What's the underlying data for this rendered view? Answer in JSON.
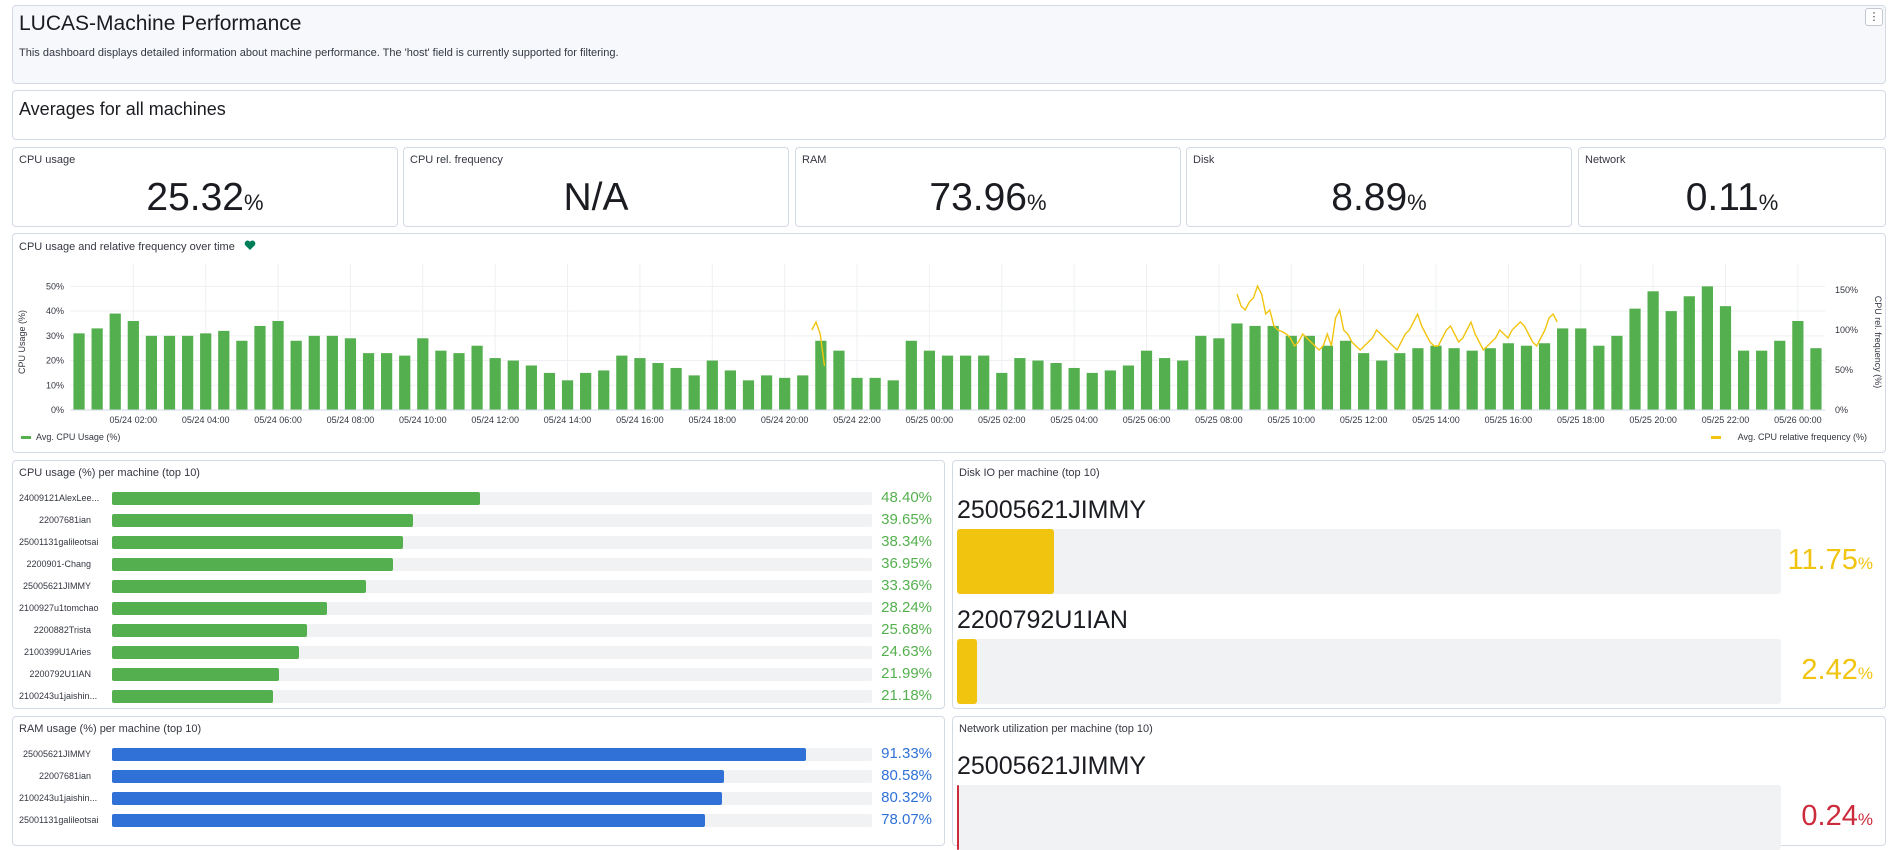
{
  "header": {
    "title": "LUCAS-Machine Performance",
    "description": "This dashboard displays detailed information about machine performance. The 'host' field is currently supported for filtering.",
    "menu_icon": "vertical-dots-icon",
    "menu_label": "⋮"
  },
  "averages": {
    "title": "Averages for all machines"
  },
  "metrics": [
    {
      "label": "CPU usage",
      "value": "25.32",
      "unit": "%"
    },
    {
      "label": "CPU rel. frequency",
      "value": "N/A",
      "unit": ""
    },
    {
      "label": "RAM",
      "value": "73.96",
      "unit": "%"
    },
    {
      "label": "Disk",
      "value": "8.89",
      "unit": "%"
    },
    {
      "label": "Network",
      "value": "0.11",
      "unit": "%"
    }
  ],
  "colors": {
    "green": "#54b04e",
    "yellow": "#f1c40f",
    "blue": "#2f71d6",
    "red": "#cc2b3c",
    "health": "#007e5a"
  },
  "timeline": {
    "title": "CPU usage and relative frequency over time",
    "health_icon": "heart-icon",
    "chart_data": {
      "type": "bar",
      "ylabel": "CPU Usage (%)",
      "y2label": "CPU rel. frequency (%)",
      "ylim": [
        0,
        55
      ],
      "y2lim": [
        0,
        170
      ],
      "yticks": [
        "0%",
        "10%",
        "20%",
        "30%",
        "40%",
        "50%"
      ],
      "y2ticks": [
        "0%",
        "50%",
        "100%",
        "150%"
      ],
      "xticks": [
        "05/24 02:00",
        "05/24 04:00",
        "05/24 06:00",
        "05/24 08:00",
        "05/24 10:00",
        "05/24 12:00",
        "05/24 14:00",
        "05/24 16:00",
        "05/24 18:00",
        "05/24 20:00",
        "05/24 22:00",
        "05/25 00:00",
        "05/25 02:00",
        "05/25 04:00",
        "05/25 06:00",
        "05/25 08:00",
        "05/25 10:00",
        "05/25 12:00",
        "05/25 14:00",
        "05/25 16:00",
        "05/25 18:00",
        "05/25 20:00",
        "05/25 22:00",
        "05/26 00:00"
      ],
      "series": [
        {
          "name": "Avg. CPU Usage (%)",
          "values": [
            31,
            33,
            39,
            36,
            30,
            30,
            30,
            31,
            32,
            28,
            34,
            36,
            28,
            30,
            30,
            29,
            23,
            23,
            22,
            29,
            24,
            23,
            26,
            21,
            20,
            18,
            15,
            12,
            15,
            16,
            22,
            21,
            19,
            17,
            14,
            20,
            16,
            12,
            14,
            13,
            14,
            28,
            24,
            13,
            13,
            12,
            28,
            24,
            22,
            22,
            22,
            15,
            21,
            20,
            19,
            17,
            15,
            16,
            18,
            24,
            21,
            20,
            30,
            29,
            35,
            34,
            34,
            30,
            30,
            26,
            28,
            23,
            20,
            23,
            25,
            26,
            25,
            24,
            25,
            27,
            26,
            27,
            33,
            33,
            26,
            30,
            41,
            48,
            40,
            46,
            50,
            42,
            24,
            24,
            28,
            36,
            25
          ]
        },
        {
          "name": "Avg. CPU relative frequency (%)",
          "values": [
            null,
            null,
            null,
            null,
            null,
            null,
            null,
            null,
            null,
            null,
            null,
            null,
            null,
            null,
            null,
            null,
            null,
            null,
            null,
            null,
            null,
            null,
            null,
            null,
            null,
            null,
            null,
            null,
            null,
            null,
            null,
            null,
            null,
            null,
            null,
            null,
            null,
            null,
            null,
            null,
            null,
            null,
            null,
            null,
            null,
            null,
            null,
            null,
            null,
            null,
            null,
            null,
            null,
            null,
            null,
            null,
            null,
            null,
            null,
            null,
            null,
            null,
            null,
            null,
            null,
            null,
            null,
            null,
            null,
            null,
            null,
            null,
            null,
            null,
            null,
            null,
            null,
            null,
            null,
            null,
            null,
            null,
            null,
            null,
            null,
            null,
            null,
            null,
            null,
            null,
            null,
            null,
            null,
            null,
            null,
            null,
            null
          ]
        }
      ]
    },
    "freq_segments": [
      {
        "start": 41.0,
        "end": 41.7,
        "values": [
          100,
          110,
          95,
          55
        ]
      },
      {
        "start": 64.5,
        "end": 82.2,
        "values": [
          145,
          130,
          125,
          135,
          140,
          155,
          145,
          120,
          125,
          105,
          100,
          98,
          95,
          90,
          80,
          85,
          95,
          90,
          85,
          80,
          75,
          80,
          95,
          80,
          115,
          125,
          100,
          95,
          85,
          80,
          75,
          80,
          85,
          90,
          100,
          95,
          90,
          85,
          80,
          75,
          85,
          95,
          100,
          110,
          120,
          105,
          95,
          85,
          80,
          80,
          90,
          100,
          105,
          95,
          85,
          90,
          100,
          110,
          95,
          85,
          75,
          80,
          85,
          90,
          100,
          95,
          90,
          100,
          105,
          110,
          105,
          95,
          85,
          80,
          90,
          100,
          115,
          120,
          110
        ]
      }
    ]
  },
  "cpu_top": {
    "title": "CPU usage (%) per machine (top 10)",
    "rows": [
      {
        "name": "24009121AlexLee...",
        "pct": 48.4,
        "value": "48.40%"
      },
      {
        "name": "22007681ian",
        "pct": 39.65,
        "value": "39.65%"
      },
      {
        "name": "25001131galileotsai",
        "pct": 38.34,
        "value": "38.34%"
      },
      {
        "name": "2200901-Chang",
        "pct": 36.95,
        "value": "36.95%"
      },
      {
        "name": "25005621JIMMY",
        "pct": 33.36,
        "value": "33.36%"
      },
      {
        "name": "2100927u1tomchao",
        "pct": 28.24,
        "value": "28.24%"
      },
      {
        "name": "2200882Trista",
        "pct": 25.68,
        "value": "25.68%"
      },
      {
        "name": "2100399U1Aries",
        "pct": 24.63,
        "value": "24.63%"
      },
      {
        "name": "2200792U1IAN",
        "pct": 21.99,
        "value": "21.99%"
      },
      {
        "name": "2100243u1jaishin...",
        "pct": 21.18,
        "value": "21.18%"
      }
    ]
  },
  "ram_top": {
    "title": "RAM usage (%) per machine (top 10)",
    "rows": [
      {
        "name": "25005621JIMMY",
        "pct": 91.33,
        "value": "91.33%"
      },
      {
        "name": "22007681ian",
        "pct": 80.58,
        "value": "80.58%"
      },
      {
        "name": "2100243u1jaishin...",
        "pct": 80.32,
        "value": "80.32%"
      },
      {
        "name": "25001131galileotsai",
        "pct": 78.07,
        "value": "78.07%"
      }
    ]
  },
  "disk_top": {
    "title": "Disk IO per machine (top 10)",
    "rows": [
      {
        "name": "25005621JIMMY",
        "pct": 11.75,
        "value": "11.75",
        "unit": "%"
      },
      {
        "name": "2200792U1IAN",
        "pct": 2.42,
        "value": "2.42",
        "unit": "%"
      }
    ]
  },
  "net_top": {
    "title": "Network utilization per machine (top 10)",
    "rows": [
      {
        "name": "25005621JIMMY",
        "pct": 0.24,
        "value": "0.24",
        "unit": "%"
      }
    ]
  }
}
